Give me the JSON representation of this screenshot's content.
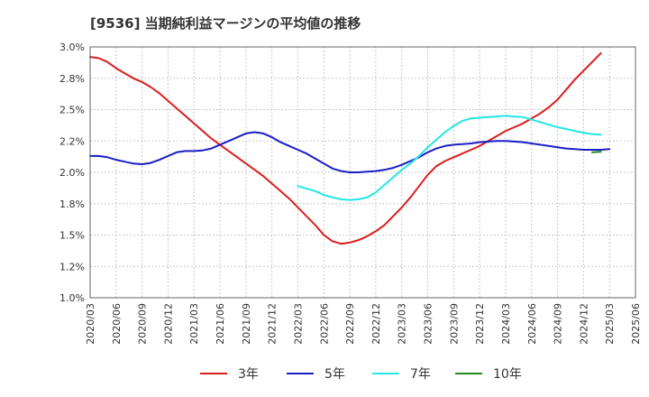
{
  "chart_data": {
    "type": "line",
    "title": "[9536]  当期純利益マージンの平均値の推移",
    "xlabel": "",
    "ylabel": "",
    "ylim": [
      1.0,
      3.0
    ],
    "yticks": [
      "1.0%",
      "1.2%",
      "1.5%",
      "1.8%",
      "2.0%",
      "2.2%",
      "2.5%",
      "2.8%",
      "3.0%"
    ],
    "ytick_values": [
      1.0,
      1.25,
      1.5,
      1.75,
      2.0,
      2.25,
      2.5,
      2.75,
      3.0
    ],
    "xticks": [
      "2020/03",
      "2020/06",
      "2020/09",
      "2020/12",
      "2021/03",
      "2021/06",
      "2021/09",
      "2021/12",
      "2022/03",
      "2022/06",
      "2022/09",
      "2022/12",
      "2023/03",
      "2023/06",
      "2023/09",
      "2023/12",
      "2024/03",
      "2024/06",
      "2024/09",
      "2024/12",
      "2025/03",
      "2025/06"
    ],
    "x_start": "2020/03",
    "grid": true,
    "legend_position": "bottom",
    "series": [
      {
        "name": "3年",
        "color": "#dd1c1c",
        "values": [
          [
            0,
            2.92
          ],
          [
            1,
            2.91
          ],
          [
            2,
            2.88
          ],
          [
            3,
            2.83
          ],
          [
            4,
            2.79
          ],
          [
            5,
            2.75
          ],
          [
            6,
            2.72
          ],
          [
            7,
            2.68
          ],
          [
            8,
            2.63
          ],
          [
            9,
            2.57
          ],
          [
            10,
            2.51
          ],
          [
            11,
            2.45
          ],
          [
            12,
            2.39
          ],
          [
            13,
            2.33
          ],
          [
            14,
            2.27
          ],
          [
            15,
            2.22
          ],
          [
            16,
            2.17
          ],
          [
            17,
            2.12
          ],
          [
            18,
            2.07
          ],
          [
            19,
            2.02
          ],
          [
            20,
            1.97
          ],
          [
            21,
            1.91
          ],
          [
            22,
            1.85
          ],
          [
            23,
            1.79
          ],
          [
            24,
            1.72
          ],
          [
            25,
            1.65
          ],
          [
            26,
            1.58
          ],
          [
            27,
            1.5
          ],
          [
            28,
            1.45
          ],
          [
            29,
            1.43
          ],
          [
            30,
            1.44
          ],
          [
            31,
            1.46
          ],
          [
            32,
            1.49
          ],
          [
            33,
            1.53
          ],
          [
            34,
            1.58
          ],
          [
            35,
            1.65
          ],
          [
            36,
            1.72
          ],
          [
            37,
            1.8
          ],
          [
            38,
            1.89
          ],
          [
            39,
            1.98
          ],
          [
            40,
            2.05
          ],
          [
            41,
            2.09
          ],
          [
            42,
            2.12
          ],
          [
            43,
            2.15
          ],
          [
            44,
            2.18
          ],
          [
            45,
            2.21
          ],
          [
            46,
            2.25
          ],
          [
            47,
            2.29
          ],
          [
            48,
            2.33
          ],
          [
            49,
            2.36
          ],
          [
            50,
            2.39
          ],
          [
            51,
            2.43
          ],
          [
            52,
            2.47
          ],
          [
            53,
            2.52
          ],
          [
            54,
            2.58
          ],
          [
            55,
            2.66
          ],
          [
            56,
            2.74
          ],
          [
            57,
            2.81
          ],
          [
            58,
            2.88
          ],
          [
            59,
            2.95
          ]
        ]
      },
      {
        "name": "5年",
        "color": "#1c1cc8",
        "values": [
          [
            0,
            2.13
          ],
          [
            1,
            2.13
          ],
          [
            2,
            2.12
          ],
          [
            3,
            2.1
          ],
          [
            4,
            2.085
          ],
          [
            5,
            2.07
          ],
          [
            6,
            2.065
          ],
          [
            7,
            2.075
          ],
          [
            8,
            2.1
          ],
          [
            9,
            2.13
          ],
          [
            10,
            2.16
          ],
          [
            11,
            2.17
          ],
          [
            12,
            2.17
          ],
          [
            13,
            2.175
          ],
          [
            14,
            2.19
          ],
          [
            15,
            2.22
          ],
          [
            16,
            2.25
          ],
          [
            17,
            2.28
          ],
          [
            18,
            2.31
          ],
          [
            19,
            2.32
          ],
          [
            20,
            2.31
          ],
          [
            21,
            2.28
          ],
          [
            22,
            2.24
          ],
          [
            23,
            2.21
          ],
          [
            24,
            2.18
          ],
          [
            25,
            2.15
          ],
          [
            26,
            2.11
          ],
          [
            27,
            2.07
          ],
          [
            28,
            2.03
          ],
          [
            29,
            2.01
          ],
          [
            30,
            2.0
          ],
          [
            31,
            2.0
          ],
          [
            32,
            2.005
          ],
          [
            33,
            2.01
          ],
          [
            34,
            2.02
          ],
          [
            35,
            2.035
          ],
          [
            36,
            2.06
          ],
          [
            37,
            2.09
          ],
          [
            38,
            2.12
          ],
          [
            39,
            2.16
          ],
          [
            40,
            2.19
          ],
          [
            41,
            2.21
          ],
          [
            42,
            2.22
          ],
          [
            43,
            2.225
          ],
          [
            44,
            2.23
          ],
          [
            45,
            2.24
          ],
          [
            46,
            2.245
          ],
          [
            47,
            2.25
          ],
          [
            48,
            2.25
          ],
          [
            49,
            2.245
          ],
          [
            50,
            2.24
          ],
          [
            51,
            2.23
          ],
          [
            52,
            2.22
          ],
          [
            53,
            2.21
          ],
          [
            54,
            2.2
          ],
          [
            55,
            2.19
          ],
          [
            56,
            2.185
          ],
          [
            57,
            2.18
          ],
          [
            58,
            2.18
          ],
          [
            59,
            2.18
          ],
          [
            60,
            2.185
          ]
        ]
      },
      {
        "name": "7年",
        "color": "#22e6e6",
        "values": [
          [
            24,
            1.89
          ],
          [
            25,
            1.87
          ],
          [
            26,
            1.85
          ],
          [
            27,
            1.82
          ],
          [
            28,
            1.8
          ],
          [
            29,
            1.785
          ],
          [
            30,
            1.78
          ],
          [
            31,
            1.785
          ],
          [
            32,
            1.8
          ],
          [
            33,
            1.84
          ],
          [
            34,
            1.9
          ],
          [
            35,
            1.96
          ],
          [
            36,
            2.02
          ],
          [
            37,
            2.07
          ],
          [
            38,
            2.13
          ],
          [
            39,
            2.2
          ],
          [
            40,
            2.26
          ],
          [
            41,
            2.32
          ],
          [
            42,
            2.37
          ],
          [
            43,
            2.41
          ],
          [
            44,
            2.43
          ],
          [
            45,
            2.435
          ],
          [
            46,
            2.44
          ],
          [
            47,
            2.445
          ],
          [
            48,
            2.45
          ],
          [
            49,
            2.445
          ],
          [
            50,
            2.44
          ],
          [
            51,
            2.42
          ],
          [
            52,
            2.4
          ],
          [
            53,
            2.38
          ],
          [
            54,
            2.36
          ],
          [
            55,
            2.345
          ],
          [
            56,
            2.33
          ],
          [
            57,
            2.315
          ],
          [
            58,
            2.305
          ],
          [
            59,
            2.3
          ]
        ]
      },
      {
        "name": "10年",
        "color": "#228822",
        "values": [
          [
            58,
            2.16
          ],
          [
            59,
            2.165
          ]
        ]
      }
    ]
  }
}
